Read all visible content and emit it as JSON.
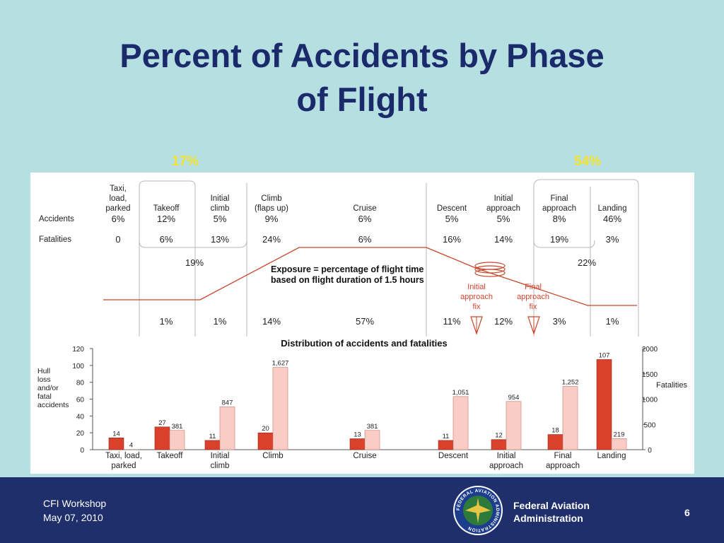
{
  "slide": {
    "title_line1": "Percent of Accidents by Phase",
    "title_line2": "of Flight",
    "highlight_left": "17%",
    "highlight_right": "54%",
    "colors": {
      "background": "#b5dfe1",
      "title": "#1b2a6b",
      "highlight": "#f5e12b",
      "accidents_bar": "#d9412b",
      "fatalities_bar": "#f9cdc6",
      "footer": "#1f2f6c"
    }
  },
  "footer": {
    "workshop": "CFI Workshop",
    "date": "May 07, 2010",
    "agency_line1": "Federal Aviation",
    "agency_line2": "Administration",
    "page_number": "6",
    "seal_text": "FEDERAL AVIATION ADMINISTRATION"
  },
  "table": {
    "row_labels": {
      "accidents": "Accidents",
      "fatalities": "Fatalities"
    },
    "phases": [
      {
        "label": [
          "Taxi,",
          "load,",
          "parked"
        ],
        "accidents": "6%",
        "fatalities": "0",
        "exposure": ""
      },
      {
        "label": [
          "Takeoff"
        ],
        "accidents": "12%",
        "fatalities": "6%",
        "exposure": "1%"
      },
      {
        "label": [
          "Initial",
          "climb"
        ],
        "accidents": "5%",
        "fatalities": "13%",
        "exposure": "1%"
      },
      {
        "label": [
          "Climb",
          "(flaps up)"
        ],
        "accidents": "9%",
        "fatalities": "24%",
        "exposure": "14%"
      },
      {
        "label": [
          "Cruise"
        ],
        "accidents": "6%",
        "fatalities": "6%",
        "exposure": "57%"
      },
      {
        "label": [
          "Descent"
        ],
        "accidents": "5%",
        "fatalities": "16%",
        "exposure": "11%"
      },
      {
        "label": [
          "Initial",
          "approach"
        ],
        "accidents": "5%",
        "fatalities": "14%",
        "exposure": "12%"
      },
      {
        "label": [
          "Final",
          "approach"
        ],
        "accidents": "8%",
        "fatalities": "19%",
        "exposure": "3%"
      },
      {
        "label": [
          "Landing"
        ],
        "accidents": "46%",
        "fatalities": "3%",
        "exposure": "1%"
      }
    ],
    "group_left_fatalities": "19%",
    "group_right_fatalities": "22%",
    "exposure_note": [
      "Exposure = percentage of flight time",
      "based on flight duration of 1.5 hours"
    ],
    "fix_label": [
      "Initial",
      "approach",
      "fix"
    ],
    "final_fix_label": [
      "Final",
      "approach",
      "fix"
    ]
  },
  "chart_data": {
    "type": "bar",
    "title": "Distribution of accidents and fatalities",
    "categories": [
      [
        "Taxi, load,",
        "parked"
      ],
      [
        "Takeoff"
      ],
      [
        "Initial",
        "climb"
      ],
      [
        "Climb"
      ],
      [
        "Cruise"
      ],
      [
        "Descent"
      ],
      [
        "Initial",
        "approach"
      ],
      [
        "Final",
        "approach"
      ],
      [
        "Landing"
      ]
    ],
    "y_left_label": [
      "Hull",
      "loss",
      "and/or",
      "fatal",
      "accidents"
    ],
    "y_right_label": "Fatalities",
    "y_left_range": [
      0,
      120
    ],
    "y_left_ticks": [
      "0",
      "20",
      "40",
      "60",
      "80",
      "100",
      "120"
    ],
    "y_right_range": [
      0,
      2000
    ],
    "y_right_ticks": [
      "0",
      "500",
      "1000",
      "1500",
      "2000"
    ],
    "series": [
      {
        "values": [
          14,
          27,
          11,
          20,
          13,
          11,
          12,
          18,
          107
        ],
        "labels": [
          "14",
          "27",
          "11",
          "20",
          "13",
          "11",
          "12",
          "18",
          "107"
        ],
        "axis": "left"
      },
      {
        "values": [
          4,
          381,
          847,
          1627,
          381,
          1051,
          954,
          1252,
          219
        ],
        "labels": [
          "4",
          "381",
          "847",
          "1,627",
          "381",
          "1,051",
          "954",
          "1,252",
          "219"
        ],
        "axis": "right"
      }
    ]
  }
}
